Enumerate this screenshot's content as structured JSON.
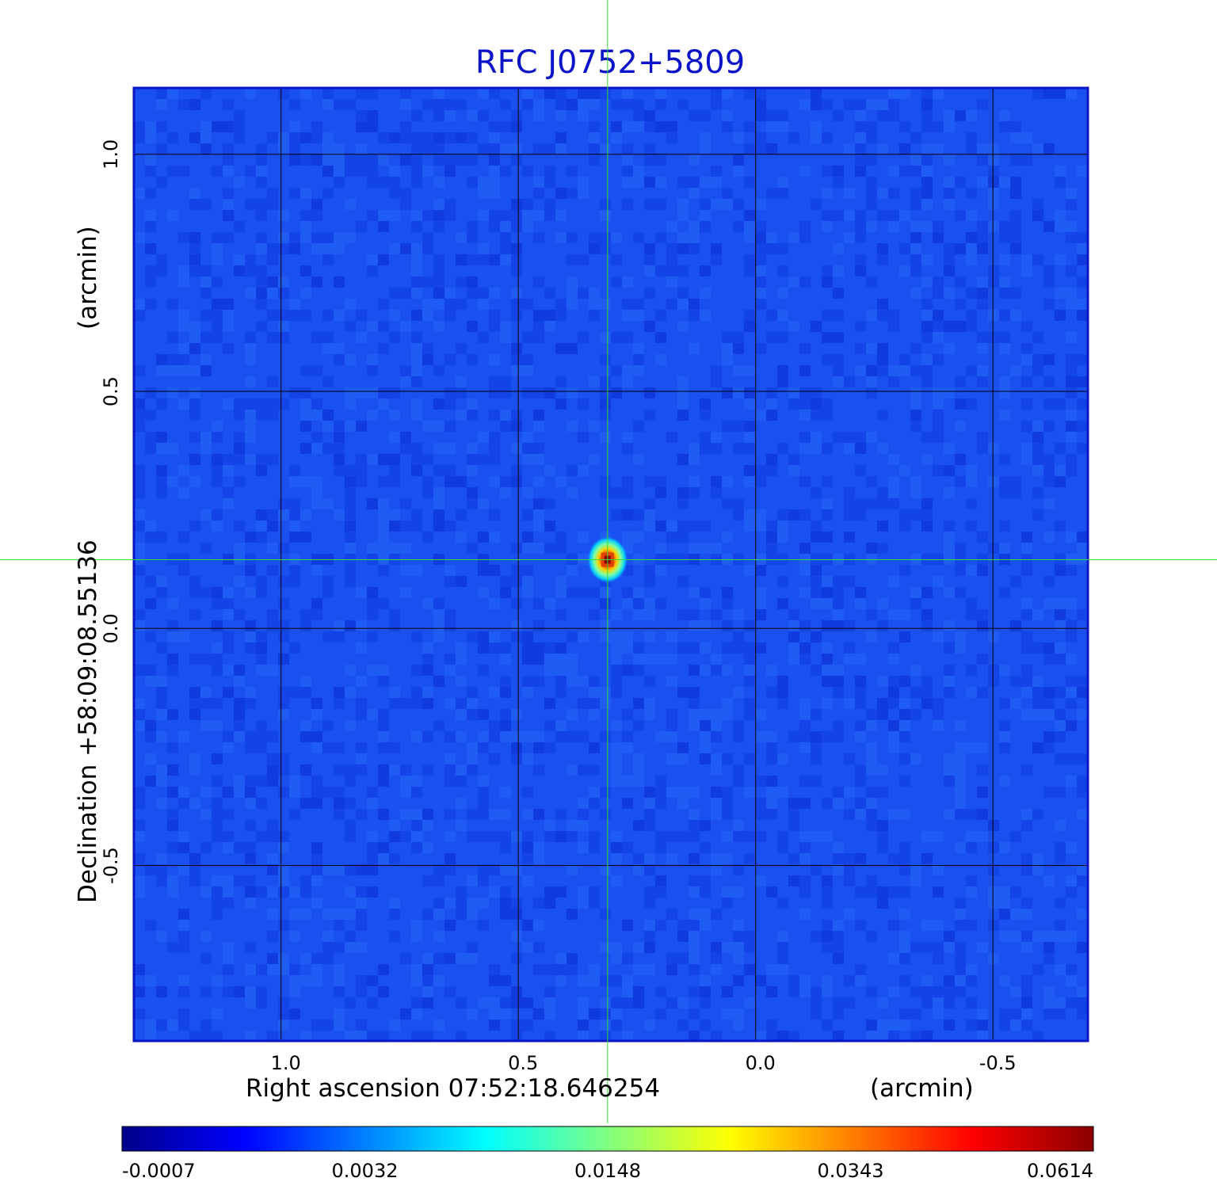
{
  "chart_data": {
    "type": "heatmap",
    "title": "RFC J0752+5809",
    "xlabel": "Right ascension  07:52:18.646254",
    "xunit": "(arcmin)",
    "ylabel": "Declination  +58:09:08.55136",
    "yunit": "(arcmin)",
    "xlim": [
      1.31,
      -0.7
    ],
    "ylim": [
      -0.87,
      1.14
    ],
    "x_ticks": [
      1.0,
      0.5,
      0.0,
      -0.5
    ],
    "x_tick_labels": [
      "1.0",
      "0.5",
      "0.0",
      "-0.5"
    ],
    "y_ticks": [
      1.0,
      0.5,
      0.0,
      -0.5
    ],
    "y_tick_labels": [
      "1.0",
      "0.5",
      "0.0",
      "-0.5"
    ],
    "grid": true,
    "crosshair": {
      "x": 0.312,
      "y": 0.145,
      "color": "#33dd33"
    },
    "source_peak": {
      "x": 0.312,
      "y": 0.145,
      "value": 0.0614
    },
    "colorbar": {
      "ticks": [
        "-0.0007",
        "0.0032",
        "0.0148",
        "0.0343",
        "0.0614"
      ],
      "colors": [
        "#00008b",
        "#0000ff",
        "#0080ff",
        "#00ffff",
        "#80ff80",
        "#ffff00",
        "#ff8000",
        "#ff0000",
        "#8b0000"
      ]
    },
    "colors": {
      "title": "#0a14c8",
      "background_map": "#1a50f0",
      "frame": "#0a14c8",
      "grid": "#000000"
    }
  }
}
